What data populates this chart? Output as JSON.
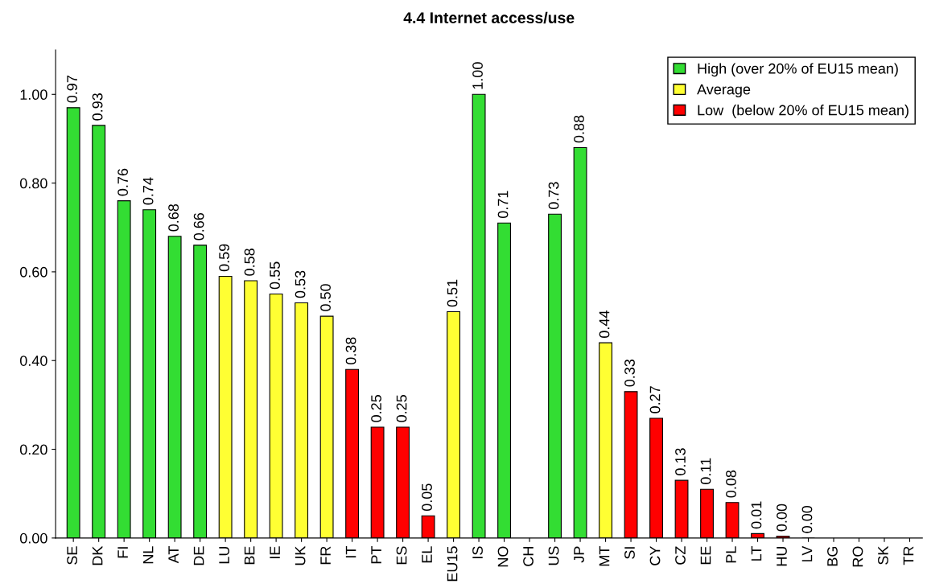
{
  "chart_data": {
    "type": "bar",
    "title": "4.4 Internet access/use",
    "categories": [
      "SE",
      "DK",
      "FI",
      "NL",
      "AT",
      "DE",
      "LU",
      "BE",
      "IE",
      "UK",
      "FR",
      "IT",
      "PT",
      "ES",
      "EL",
      "EU15",
      "IS",
      "NO",
      "CH",
      "US",
      "JP",
      "MT",
      "SI",
      "CY",
      "CZ",
      "EE",
      "PL",
      "LT",
      "HU",
      "LV",
      "BG",
      "RO",
      "SK",
      "TR"
    ],
    "series": [
      {
        "name": "High (over 20% of EU15 mean)",
        "color": "#33dd33",
        "values": [
          0.97,
          0.93,
          0.76,
          0.74,
          0.68,
          0.66,
          null,
          null,
          null,
          null,
          null,
          null,
          null,
          null,
          null,
          null,
          1.0,
          0.71,
          null,
          0.73,
          0.88,
          null,
          null,
          null,
          null,
          null,
          null,
          null,
          null,
          null,
          null,
          null,
          null,
          null
        ],
        "value_labels": [
          "0.97",
          "0.93",
          "0.76",
          "0.74",
          "0.68",
          "0.66",
          null,
          null,
          null,
          null,
          null,
          null,
          null,
          null,
          null,
          null,
          "1.00",
          "0.71",
          null,
          "0.73",
          "0.88",
          null,
          null,
          null,
          null,
          null,
          null,
          null,
          null,
          null,
          null,
          null,
          null,
          null
        ]
      },
      {
        "name": "Average",
        "color": "#ffff33",
        "values": [
          null,
          null,
          null,
          null,
          null,
          null,
          0.59,
          0.58,
          0.55,
          0.53,
          0.5,
          null,
          null,
          null,
          null,
          0.51,
          null,
          null,
          null,
          null,
          null,
          0.44,
          null,
          null,
          null,
          null,
          null,
          null,
          null,
          null,
          null,
          null,
          null,
          null
        ],
        "value_labels": [
          null,
          null,
          null,
          null,
          null,
          null,
          "0.59",
          "0.58",
          "0.55",
          "0.53",
          "0.50",
          null,
          null,
          null,
          null,
          "0.51",
          null,
          null,
          null,
          null,
          null,
          "0.44",
          null,
          null,
          null,
          null,
          null,
          null,
          null,
          null,
          null,
          null,
          null,
          null
        ]
      },
      {
        "name": "Low  (below 20% of EU15 mean)",
        "color": "#ff0000",
        "values": [
          null,
          null,
          null,
          null,
          null,
          null,
          null,
          null,
          null,
          null,
          null,
          0.38,
          0.25,
          0.25,
          0.05,
          null,
          null,
          null,
          null,
          null,
          null,
          null,
          0.33,
          0.27,
          0.13,
          0.11,
          0.08,
          0.01,
          0.004,
          0.0,
          null,
          null,
          null,
          null
        ],
        "value_labels": [
          null,
          null,
          null,
          null,
          null,
          null,
          null,
          null,
          null,
          null,
          null,
          "0.38",
          "0.25",
          "0.25",
          "0.05",
          null,
          null,
          null,
          null,
          null,
          null,
          null,
          "0.33",
          "0.27",
          "0.13",
          "0.11",
          "0.08",
          "0.01",
          "0.00",
          "0.00",
          null,
          null,
          null,
          null
        ]
      }
    ],
    "ylim": [
      0,
      1.1
    ],
    "yticks": [
      {
        "value": 0,
        "label": "0.00"
      },
      {
        "value": 0.2,
        "label": "0.20"
      },
      {
        "value": 0.4,
        "label": "0.40"
      },
      {
        "value": 0.6,
        "label": "0.60"
      },
      {
        "value": 0.8,
        "label": "0.80"
      },
      {
        "value": 1.0,
        "label": "1.00"
      }
    ],
    "legend": "top right"
  }
}
